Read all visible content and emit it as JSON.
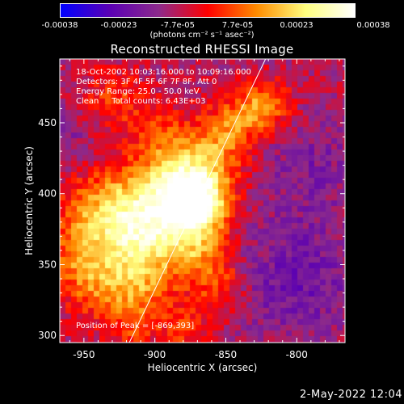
{
  "colorbar": {
    "tick_labels": [
      "-0.00038",
      "-0.00023",
      "-7.7e-05",
      "7.7e-05",
      "0.00023",
      "0.00038"
    ],
    "units_label": "(photons cm⁻² s⁻¹ asec⁻²)",
    "colors": [
      "#0000ff",
      "#5a00b4",
      "#8c2a8c",
      "#ff0000",
      "#ff8c00",
      "#ffff80",
      "#ffffff"
    ]
  },
  "chart_data": {
    "type": "heatmap",
    "title": "Reconstructed RHESSI Image",
    "xlabel": "Heliocentric X (arcsec)",
    "ylabel": "Heliocentric Y (arcsec)",
    "xlim": [
      -967,
      -766
    ],
    "ylim": [
      295,
      495
    ],
    "xticks": [
      -950,
      -900,
      -850,
      -800
    ],
    "yticks": [
      300,
      350,
      400,
      450
    ],
    "color_range": [
      -0.00038,
      0.00038
    ],
    "peak": [
      -869,
      393
    ],
    "limb_line": [
      [
        -918,
        295
      ],
      [
        -822,
        495
      ]
    ],
    "blobs": [
      {
        "x": -869,
        "y": 393,
        "amp": 0.00038,
        "w": 14
      },
      {
        "x": -885,
        "y": 405,
        "amp": 0.00026,
        "w": 18
      },
      {
        "x": -900,
        "y": 380,
        "amp": 0.00022,
        "w": 22
      },
      {
        "x": -915,
        "y": 365,
        "amp": 0.00018,
        "w": 20
      },
      {
        "x": -930,
        "y": 395,
        "amp": 0.00014,
        "w": 20
      },
      {
        "x": -950,
        "y": 380,
        "amp": 0.00012,
        "w": 18
      },
      {
        "x": -940,
        "y": 335,
        "amp": 0.00016,
        "w": 18
      },
      {
        "x": -910,
        "y": 330,
        "amp": 0.00014,
        "w": 16
      },
      {
        "x": -955,
        "y": 355,
        "amp": 0.0001,
        "w": 14
      },
      {
        "x": -860,
        "y": 425,
        "amp": 0.00018,
        "w": 16
      },
      {
        "x": -845,
        "y": 450,
        "amp": 0.00016,
        "w": 14
      },
      {
        "x": -822,
        "y": 462,
        "amp": 0.00022,
        "w": 12
      },
      {
        "x": -870,
        "y": 360,
        "amp": 0.00016,
        "w": 16
      },
      {
        "x": -855,
        "y": 335,
        "amp": 0.00012,
        "w": 14
      },
      {
        "x": -895,
        "y": 440,
        "amp": 0.00012,
        "w": 16
      },
      {
        "x": -930,
        "y": 465,
        "amp": 0.00012,
        "w": 16
      },
      {
        "x": -880,
        "y": 305,
        "amp": 0.00012,
        "w": 12
      },
      {
        "x": -915,
        "y": 305,
        "amp": 0.0001,
        "w": 10
      },
      {
        "x": -800,
        "y": 340,
        "amp": -0.00012,
        "w": 30
      },
      {
        "x": -790,
        "y": 420,
        "amp": -8e-05,
        "w": 25
      },
      {
        "x": -960,
        "y": 440,
        "amp": -6e-05,
        "w": 18
      }
    ]
  },
  "info": {
    "lines": [
      "18-Oct-2002 10:03:16.000 to 10:09:16.000",
      "Detectors: 3F 4F 5F 6F 7F 8F, Att 0",
      "Energy Range: 25.0 - 50.0 keV",
      "Clean     Total counts: 6.43E+03"
    ],
    "peak": "Position of Peak = [-869,393]"
  },
  "timestamp": "2-May-2022 12:04"
}
